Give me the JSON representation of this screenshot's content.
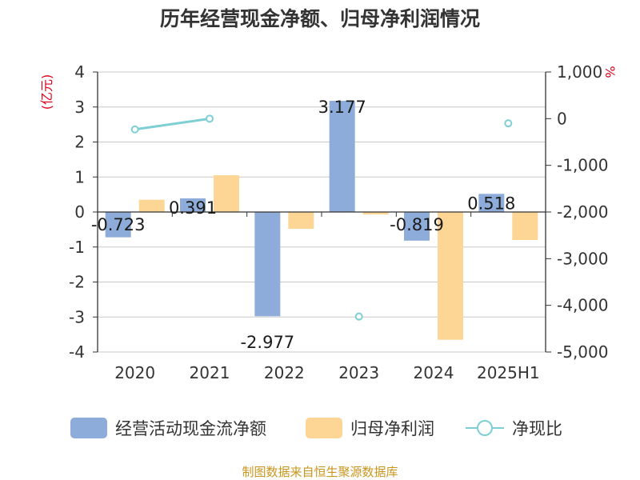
{
  "chart_data": {
    "type": "bar",
    "title": "历年经营现金净额、归母净利润情况",
    "left_unit": "(亿元)",
    "right_unit": "%",
    "categories": [
      "2020",
      "2021",
      "2022",
      "2023",
      "2024",
      "2025H1"
    ],
    "ylim_left": [
      -4,
      4
    ],
    "ylim_right": [
      -5000,
      1000
    ],
    "left_ticks": [
      "4",
      "3",
      "2",
      "1",
      "0",
      "-1",
      "-2",
      "-3",
      "-4"
    ],
    "right_ticks": [
      "1,000",
      "0",
      "-1,000",
      "-2,000",
      "-3,000",
      "-4,000",
      "-5,000"
    ],
    "grid": true,
    "legend_position": "bottom",
    "series": [
      {
        "name": "经营活动现金流净额",
        "type": "bar",
        "axis": "left",
        "color": "#8eacd9",
        "values": [
          -0.723,
          0.391,
          -2.977,
          3.177,
          -0.819,
          0.518
        ],
        "labels": [
          "-0.723",
          "0.391",
          "-2.977",
          "3.177",
          "-0.819",
          "0.518"
        ]
      },
      {
        "name": "归母净利润",
        "type": "bar",
        "axis": "left",
        "color": "#fdd595",
        "values": [
          0.35,
          1.05,
          -0.48,
          -0.07,
          -3.65,
          -0.8
        ]
      },
      {
        "name": "净现比",
        "type": "line",
        "axis": "right",
        "color": "#7ecfd4",
        "values": [
          -230,
          0,
          null,
          -4240,
          null,
          -100
        ]
      }
    ],
    "source": "制图数据来自恒生聚源数据库"
  }
}
